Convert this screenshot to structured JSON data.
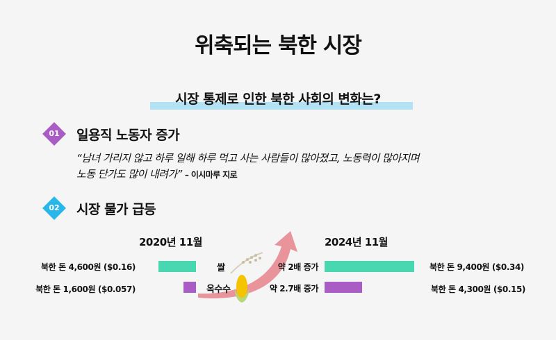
{
  "title": "위축되는 북한 시장",
  "subtitle": "시장 통제로 인한 북한 사회의 변화는?",
  "colors": {
    "highlight": "#b3e2f5",
    "purple": "#a95cc4",
    "blue": "#29b6e8",
    "teal": "#47d8b2",
    "arrow": "#e88a90"
  },
  "sections": [
    {
      "number": "01",
      "heading": "일용직 노동자 증가",
      "quote_line1": "“남녀 가리지 않고 하루 일해 하루 먹고 사는 사람들이 많아졌고, 노동력이 많아지며",
      "quote_line2": "노동 단가도 많이 내려가”",
      "attribution": "– 이시마루 지로"
    },
    {
      "number": "02",
      "heading": "시장 물가 급등"
    }
  ],
  "prices": {
    "year_left": "2020년 11월",
    "year_right": "2024년 11월",
    "items": [
      {
        "name": "쌀",
        "left_label": "북한 돈 4,600원 ($0.16)",
        "left_value": 4600,
        "right_label": "북한 돈 9,400원 ($0.34)",
        "right_value": 9400,
        "change": "약 2배 증가",
        "icon": "rice-icon"
      },
      {
        "name": "옥수수",
        "left_label": "북한 돈 1,600원 ($0.057)",
        "left_value": 1600,
        "right_label": "북한 돈 4,300원 ($0.15)",
        "right_value": 4300,
        "change": "약 2.7배 증가",
        "icon": "corn-icon"
      }
    ]
  }
}
